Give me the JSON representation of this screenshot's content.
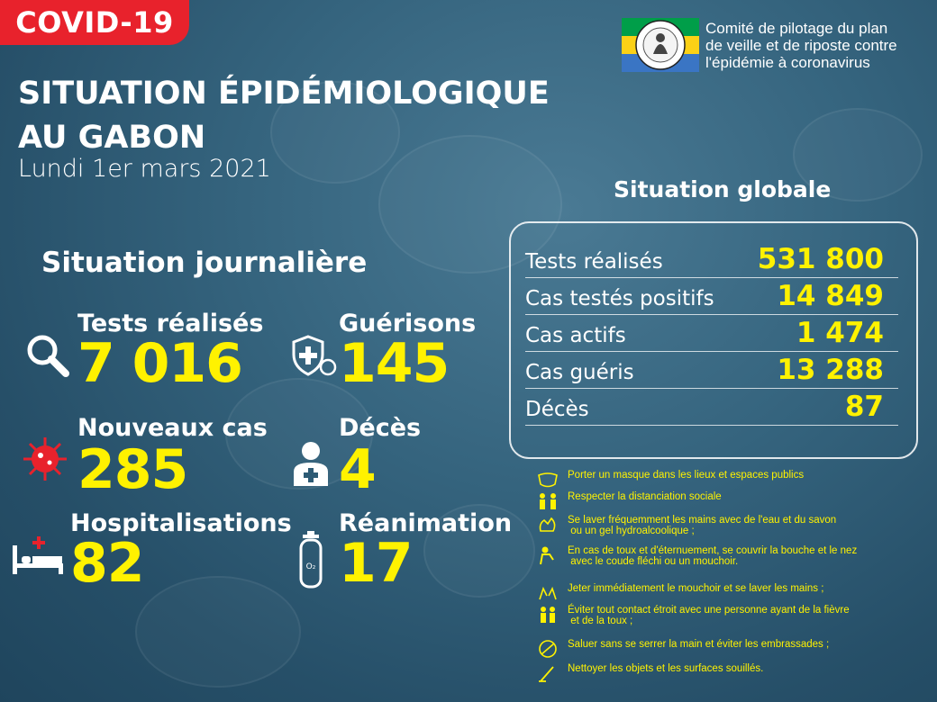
{
  "header": {
    "tag": "COVID-19",
    "title_line1": "SITUATION ÉPIDÉMIOLOGIQUE",
    "title_line2": "AU GABON",
    "date": "Lundi 1er mars 2021"
  },
  "logo": {
    "text_line1": "Comité de pilotage du plan",
    "text_line2": "de veille et de riposte contre",
    "text_line3": "l'épidémie à coronavirus",
    "colors": [
      "#009e49",
      "#fcd116",
      "#3a75c4"
    ]
  },
  "daily": {
    "heading": "Situation journalière",
    "tests": {
      "label": "Tests réalisés",
      "value": "7 016",
      "icon": "magnifier-icon"
    },
    "gueri": {
      "label": "Guérisons",
      "value": "145",
      "icon": "shield-cross-icon"
    },
    "nouveaux": {
      "label": "Nouveaux cas",
      "value": "285",
      "icon": "virus-icon"
    },
    "deces": {
      "label": "Décès",
      "value": "4",
      "icon": "person-cross-icon"
    },
    "hosp": {
      "label": "Hospitalisations",
      "value": "82",
      "icon": "hospital-bed-icon"
    },
    "reanim": {
      "label": "Réanimation",
      "value": "17",
      "icon": "oxygen-tank-icon"
    }
  },
  "global": {
    "heading": "Situation globale",
    "rows": [
      {
        "label": "Tests réalisés",
        "value": "531 800"
      },
      {
        "label": "Cas testés positifs",
        "value": "14 849"
      },
      {
        "label": "Cas actifs",
        "value": "1 474"
      },
      {
        "label": "Cas guéris",
        "value": "13 288"
      },
      {
        "label": "Décès",
        "value": "87"
      }
    ]
  },
  "tips": [
    {
      "text": "Porter un masque dans les lieux et espaces publics",
      "icon": "mask-icon"
    },
    {
      "text": "Respecter la distanciation sociale",
      "icon": "distance-icon"
    },
    {
      "text": "Se laver fréquemment les mains avec de l'eau et du savon\n ou un gel hydroalcoolique ;",
      "icon": "handwash-icon"
    },
    {
      "text": "En cas de toux et d'éternuement, se couvrir la bouche et le nez\n avec le coude fléchi ou un mouchoir.",
      "icon": "cough-icon"
    },
    {
      "text": "Jeter immédiatement le mouchoir et se laver les mains ;",
      "icon": "hands-icon"
    },
    {
      "text": "Éviter tout contact étroit avec une personne ayant de la fièvre\n et de la toux ;",
      "icon": "contact-icon"
    },
    {
      "text": "Saluer sans se serrer la main et éviter les embrassades ;",
      "icon": "no-handshake-icon"
    },
    {
      "text": "Nettoyer les objets et les surfaces souillés.",
      "icon": "cleaning-icon"
    }
  ]
}
